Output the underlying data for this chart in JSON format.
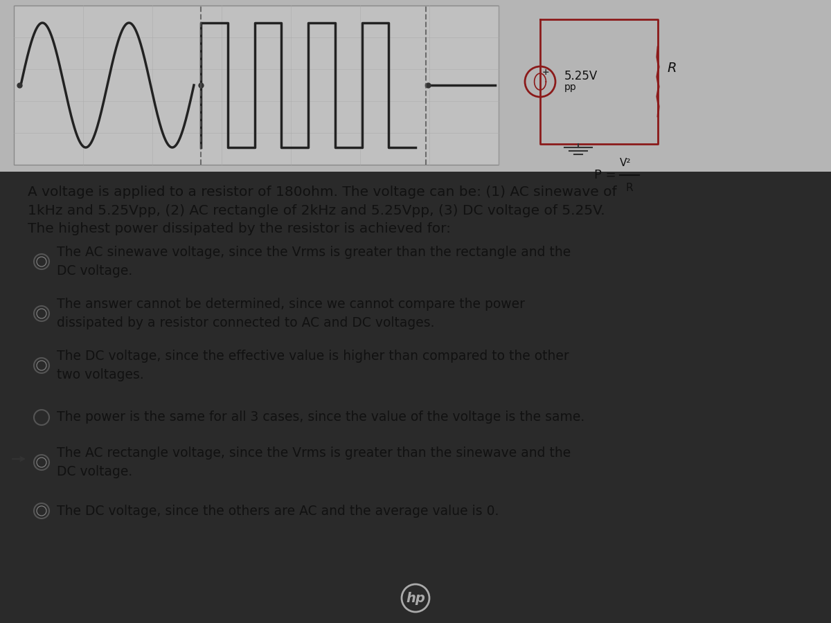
{
  "bg_color": "#c8c8c8",
  "top_panel_bg": "#d0d0d0",
  "title_area_bg": "#b8b8b8",
  "question_text": "A voltage is applied to a resistor of 180ohm. The voltage can be: (1) AC sinewave of\n1kHz and 5.25Vpp, (2) AC rectangle of 2kHz and 5.25Vpp, (3) DC voltage of 5.25V.\nThe highest power dissipated by the resistor is achieved for:",
  "options": [
    "The AC sinewave voltage, since the Vrms is greater than the rectangle and the\nDC voltage.",
    "The answer cannot be determined, since we cannot compare the power\ndissipated by a resistor connected to AC and DC voltages.",
    "The DC voltage, since the effective value is higher than compared to the other\ntwo voltages.",
    "The power is the same for all 3 cases, since the value of the voltage is the same.",
    "The AC rectangle voltage, since the Vrms is greater than the sinewave and the\nDC voltage.",
    "The DC voltage, since the others are AC and the average value is 0."
  ],
  "circuit_label_v": "5.25V",
  "circuit_label_pp": "pp",
  "circuit_label_r": "R",
  "circuit_label_p": "P = V²/R",
  "text_color": "#111111",
  "circuit_color": "#8B0000",
  "wave_color": "#333333",
  "bottom_bar_color": "#1a1a1a",
  "hp_color": "#cccccc"
}
